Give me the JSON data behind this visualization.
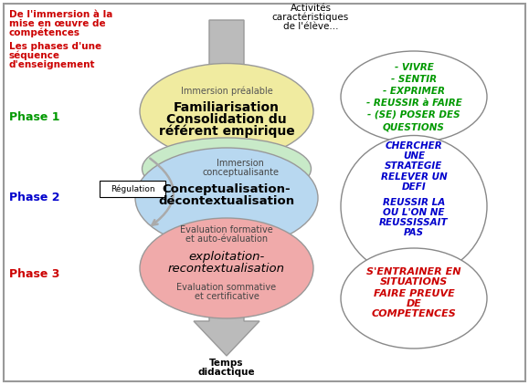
{
  "bg_color": "#ffffff",
  "border_color": "#888888",
  "title_left_line1": "De l'immersion à la",
  "title_left_line2": "mise en œuvre de",
  "title_left_line3": "compétences",
  "title_left_line4": "Les phases d'une",
  "title_left_line5": "séquence",
  "title_left_line6": "d'enseignement",
  "phase1_label": "Phase 1",
  "phase2_label": "Phase 2",
  "phase3_label": "Phase 3",
  "phase1_color": "#009900",
  "phase2_color": "#0000cc",
  "phase3_color": "#cc0000",
  "top_label_line1": "Activités",
  "top_label_line2": "caractéristiques",
  "top_label_line3": "de l'élève...",
  "bottom_label_line1": "Temps",
  "bottom_label_line2": "didactique",
  "ellipse1_color": "#f0eba0",
  "ellipse2_color": "#c8eac8",
  "ellipse3_color": "#b8d8f0",
  "ellipse4_color": "#f0aaaa",
  "ellipse1_top_text": "Immersion préalable",
  "ellipse1_main_line1": "Familiarisation",
  "ellipse1_main_line2": "Consolidation du",
  "ellipse1_main_line3": "référent empirique",
  "ellipse2_top_text_line1": "Immersion",
  "ellipse2_top_text_line2": "conceptualisante",
  "ellipse2_main_line1": "Conceptualisation-",
  "ellipse2_main_line2": "décontextualisation",
  "ellipse3_top_text_line1": "Evaluation formative",
  "ellipse3_top_text_line2": "et auto-évaluation",
  "ellipse3_main_line1": "exploitation-",
  "ellipse3_main_line2": "recontextualisation",
  "ellipse3_bottom_text_line1": "Evaluation sommative",
  "ellipse3_bottom_text_line2": "et certificative",
  "right_oval1_texts": [
    "- VIVRE",
    "- SENTIR",
    "- EXPRIMER",
    "- REUSSIR à FAIRE",
    "- (SE) POSER DES",
    "QUESTIONS"
  ],
  "right_oval1_color": "#009900",
  "right_oval2_color": "#0000cc",
  "right_oval3_color": "#cc0000",
  "regulation_text": "Régulation",
  "arrow_color": "#bbbbbb",
  "arrow_edge_color": "#999999",
  "title_color": "#cc0000"
}
